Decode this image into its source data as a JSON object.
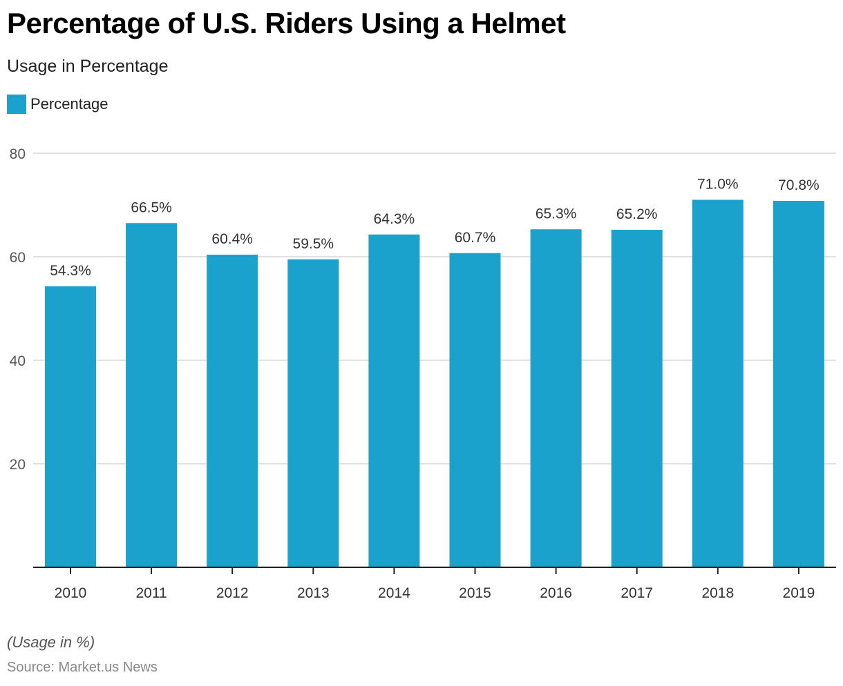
{
  "header": {
    "title": "Percentage of U.S. Riders Using a Helmet",
    "subtitle": "Usage in Percentage"
  },
  "legend": {
    "label": "Percentage",
    "color": "#1aa1cc"
  },
  "footer": {
    "note": "(Usage in %)",
    "source": "Source: Market.us News"
  },
  "chart_data": {
    "type": "bar",
    "title": "Percentage of U.S. Riders Using a Helmet",
    "subtitle": "Usage in Percentage",
    "xlabel": "",
    "ylabel": "",
    "categories": [
      "2010",
      "2011",
      "2012",
      "2013",
      "2014",
      "2015",
      "2016",
      "2017",
      "2018",
      "2019"
    ],
    "series": [
      {
        "name": "Percentage",
        "color": "#1aa1cc",
        "values": [
          54.3,
          66.5,
          60.4,
          59.5,
          64.3,
          60.7,
          65.3,
          65.2,
          71.0,
          70.8
        ],
        "labels": [
          "54.3%",
          "66.5%",
          "60.4%",
          "59.5%",
          "64.3%",
          "60.7%",
          "65.3%",
          "65.2%",
          "71.0%",
          "70.8%"
        ]
      }
    ],
    "ylim": [
      0,
      80
    ],
    "yticks": [
      20,
      40,
      60,
      80
    ],
    "grid": true,
    "legend_position": "top-left"
  }
}
